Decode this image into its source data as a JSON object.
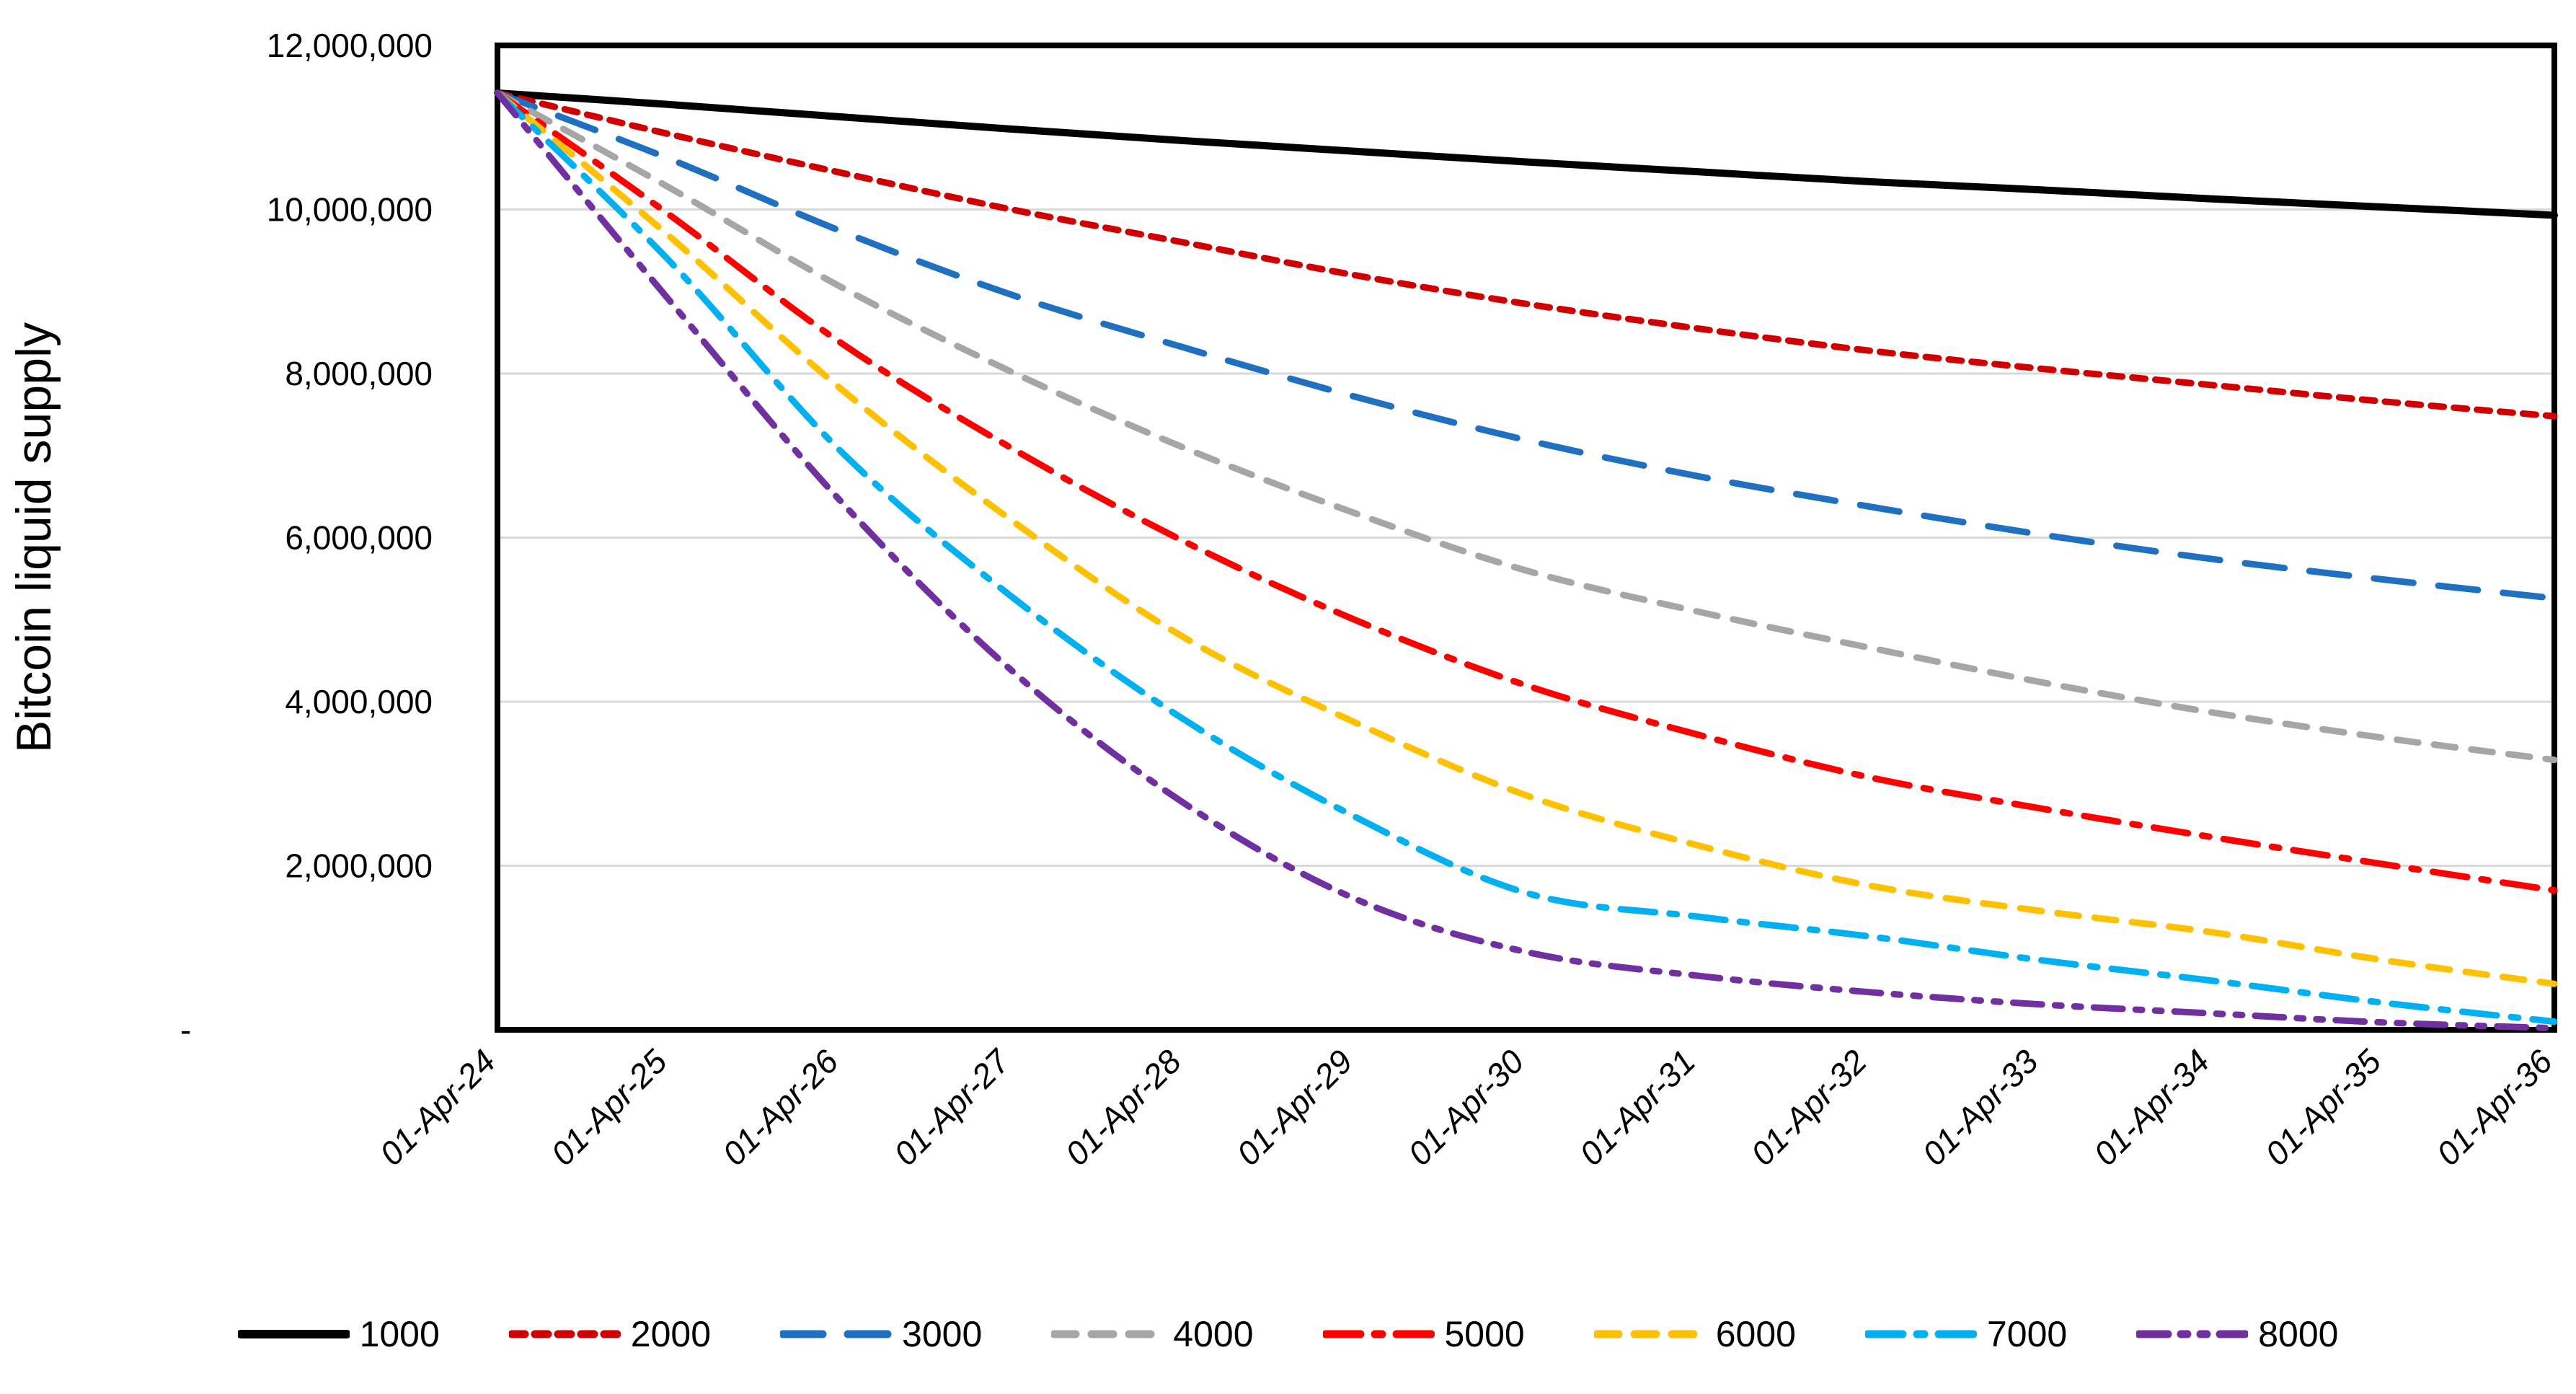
{
  "chart": {
    "y_axis_title": "Bitcoin liquid supply",
    "y_tick_labels": [
      "12,000,000",
      "10,000,000",
      "8,000,000",
      "6,000,000",
      "4,000,000",
      "2,000,000",
      "-"
    ],
    "grid_color": "#d9d9d9",
    "border_color": "#000000",
    "background": "#ffffff"
  },
  "chart_data": {
    "type": "line",
    "title": "",
    "xlabel": "",
    "ylabel": "Bitcoin liquid supply",
    "ylim": [
      0,
      12000000
    ],
    "grid": true,
    "legend_position": "bottom",
    "categories": [
      "01-Apr-24",
      "01-Apr-25",
      "01-Apr-26",
      "01-Apr-27",
      "01-Apr-28",
      "01-Apr-29",
      "01-Apr-30",
      "01-Apr-31",
      "01-Apr-32",
      "01-Apr-33",
      "01-Apr-34",
      "01-Apr-35",
      "01-Apr-36"
    ],
    "series": [
      {
        "name": "1000",
        "color": "#000000",
        "dash": "",
        "width": 10,
        "values": [
          11420000,
          11280000,
          11130000,
          10980000,
          10840000,
          10710000,
          10580000,
          10460000,
          10340000,
          10240000,
          10130000,
          10030000,
          9930000
        ]
      },
      {
        "name": "2000",
        "color": "#d00000",
        "dash": "18 14",
        "width": 9,
        "values": [
          11420000,
          10920000,
          10450000,
          10000000,
          9600000,
          9200000,
          8850000,
          8550000,
          8280000,
          8060000,
          7860000,
          7660000,
          7480000
        ]
      },
      {
        "name": "3000",
        "color": "#1f70c0",
        "dash": "55 35",
        "width": 9,
        "values": [
          11420000,
          10620000,
          9740000,
          8960000,
          8320000,
          7720000,
          7190000,
          6750000,
          6380000,
          6040000,
          5740000,
          5490000,
          5260000
        ]
      },
      {
        "name": "4000",
        "color": "#a6a6a6",
        "dash": "30 22",
        "width": 9,
        "values": [
          11420000,
          10270000,
          9060000,
          8020000,
          7100000,
          6300000,
          5600000,
          5100000,
          4660000,
          4240000,
          3870000,
          3560000,
          3290000
        ]
      },
      {
        "name": "5000",
        "color": "#ff0000",
        "dash": "48 20 10 20",
        "width": 9,
        "values": [
          11420000,
          9940000,
          8380000,
          7090000,
          5960000,
          5000000,
          4200000,
          3600000,
          3080000,
          2700000,
          2350000,
          2020000,
          1700000
        ]
      },
      {
        "name": "6000",
        "color": "#ffc000",
        "dash": "30 22",
        "width": 9,
        "values": [
          11420000,
          9680000,
          7820000,
          6210000,
          4790000,
          3750000,
          2860000,
          2250000,
          1760000,
          1450000,
          1190000,
          850000,
          560000
        ]
      },
      {
        "name": "7000",
        "color": "#00b0f0",
        "dash": "48 20 10 20",
        "width": 9,
        "values": [
          11420000,
          9380000,
          7060000,
          5280000,
          3790000,
          2600000,
          1670000,
          1380000,
          1140000,
          850000,
          600000,
          330000,
          100000
        ]
      },
      {
        "name": "8000",
        "color": "#7030a0",
        "dash": "40 18 9 18 9 18",
        "width": 9,
        "values": [
          11420000,
          8900000,
          6450000,
          4380000,
          2770000,
          1600000,
          950000,
          660000,
          460000,
          310000,
          200000,
          90000,
          20000
        ]
      }
    ]
  }
}
